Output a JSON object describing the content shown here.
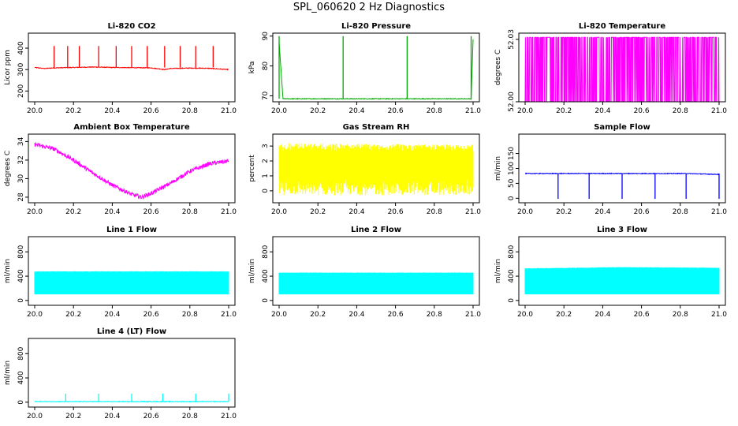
{
  "figure_title": "SPL_060620  2 Hz Diagnostics",
  "chart_data": [
    {
      "type": "line",
      "title": "Li-820 CO2",
      "ylabel": "Licor ppm",
      "color": "#ff0000",
      "xlim": [
        20.0,
        21.0
      ],
      "ylim": [
        150,
        470
      ],
      "xticks": [
        "20.0",
        "20.2",
        "20.4",
        "20.6",
        "20.8",
        "21.0"
      ],
      "yticks": [
        200,
        300,
        400
      ],
      "ytick_labels": [
        "200",
        "300",
        "400"
      ],
      "series": [
        {
          "x": [
            20.0,
            20.05,
            20.1,
            20.2,
            20.3,
            20.4,
            20.5,
            20.6,
            20.67,
            20.7,
            20.8,
            20.9,
            21.0
          ],
          "y": [
            310,
            305,
            308,
            310,
            312,
            310,
            309,
            308,
            300,
            305,
            307,
            306,
            300
          ]
        }
      ]
    },
    {
      "type": "line",
      "title": "Li-820 Pressure",
      "ylabel": "kPa",
      "color": "#00aa00",
      "xlim": [
        20.0,
        21.0
      ],
      "ylim": [
        68,
        91
      ],
      "xticks": [
        "20.0",
        "20.2",
        "20.4",
        "20.6",
        "20.8",
        "21.0"
      ],
      "yticks": [
        70,
        80,
        90
      ],
      "ytick_labels": [
        "70",
        "80",
        "90"
      ],
      "series": [
        {
          "x": [
            20.0,
            20.02,
            20.33,
            20.34,
            20.66,
            20.67,
            20.99,
            21.0
          ],
          "y": [
            88,
            69,
            69,
            69,
            69,
            69,
            69,
            89
          ]
        }
      ]
    },
    {
      "type": "line",
      "title": "Li-820 Temperature",
      "ylabel": "degrees C",
      "color": "#ff00ff",
      "xlim": [
        20.0,
        21.0
      ],
      "ylim": [
        52.0,
        52.033
      ],
      "xticks": [
        "20.0",
        "20.2",
        "20.4",
        "20.6",
        "20.8",
        "21.0"
      ],
      "yticks": [
        52.0,
        52.03
      ],
      "ytick_labels": [
        "52.00",
        "52.03"
      ],
      "series": [
        {
          "x": [
            20.0,
            20.1,
            20.2,
            20.3,
            20.4,
            20.5,
            20.6,
            20.7,
            20.8,
            20.9,
            21.0
          ],
          "y": [
            52.031,
            52.031,
            52.016,
            52.016,
            52.016,
            52.0,
            52.0,
            52.016,
            52.031,
            52.031,
            52.031
          ]
        }
      ]
    },
    {
      "type": "line",
      "title": "Ambient Box Temperature",
      "ylabel": "degrees C",
      "color": "#ff00ff",
      "xlim": [
        20.0,
        21.0
      ],
      "ylim": [
        27.4,
        34.8
      ],
      "xticks": [
        "20.0",
        "20.2",
        "20.4",
        "20.6",
        "20.8",
        "21.0"
      ],
      "yticks": [
        28,
        30,
        32,
        34
      ],
      "ytick_labels": [
        "28",
        "30",
        "32",
        "34"
      ],
      "series": [
        {
          "x": [
            20.0,
            20.1,
            20.2,
            20.3,
            20.4,
            20.5,
            20.55,
            20.6,
            20.7,
            20.8,
            20.9,
            21.0
          ],
          "y": [
            33.7,
            33.2,
            32.0,
            30.6,
            29.3,
            28.3,
            28.0,
            28.4,
            29.5,
            30.8,
            31.6,
            31.9
          ]
        }
      ]
    },
    {
      "type": "area",
      "title": "Gas Stream RH",
      "ylabel": "percent",
      "color": "#ffff00",
      "xlim": [
        20.0,
        21.0
      ],
      "ylim": [
        -0.8,
        3.8
      ],
      "xticks": [
        "20.0",
        "20.2",
        "20.4",
        "20.6",
        "20.8",
        "21.0"
      ],
      "yticks": [
        0,
        1,
        2,
        3
      ],
      "ytick_labels": [
        "0",
        "1",
        "2",
        "3"
      ],
      "series": [
        {
          "x": [
            20.0,
            21.0
          ],
          "y_min": [
            -0.3,
            -0.3
          ],
          "y_max": [
            3.2,
            3.1
          ]
        }
      ]
    },
    {
      "type": "line",
      "title": "Sample Flow",
      "ylabel": "ml/min",
      "color": "#0000ff",
      "xlim": [
        20.0,
        21.0
      ],
      "ylim": [
        -15,
        215
      ],
      "xticks": [
        "20.0",
        "20.2",
        "20.4",
        "20.6",
        "20.8",
        "21.0"
      ],
      "yticks": [
        0,
        50,
        100,
        150
      ],
      "ytick_labels": [
        "0",
        "50",
        "100",
        "150"
      ],
      "series": [
        {
          "x": [
            20.0,
            20.17,
            20.33,
            20.5,
            20.67,
            20.83,
            21.0
          ],
          "y": [
            83,
            83,
            83,
            83,
            83,
            83,
            80
          ]
        }
      ]
    },
    {
      "type": "area",
      "title": "Line 1 Flow",
      "ylabel": "ml/min",
      "color": "#00ffff",
      "xlim": [
        20.0,
        21.0
      ],
      "ylim": [
        -80,
        1050
      ],
      "xticks": [
        "20.0",
        "20.2",
        "20.4",
        "20.6",
        "20.8",
        "21.0"
      ],
      "yticks": [
        0,
        400,
        800
      ],
      "ytick_labels": [
        "0",
        "400",
        "800"
      ],
      "series": [
        {
          "x": [
            20.0,
            21.0
          ],
          "y_min": [
            100,
            100
          ],
          "y_max": [
            480,
            480
          ]
        }
      ]
    },
    {
      "type": "area",
      "title": "Line 2 Flow",
      "ylabel": "ml/min",
      "color": "#00ffff",
      "xlim": [
        20.0,
        21.0
      ],
      "ylim": [
        -80,
        1050
      ],
      "xticks": [
        "20.0",
        "20.2",
        "20.4",
        "20.6",
        "20.8",
        "21.0"
      ],
      "yticks": [
        0,
        400,
        800
      ],
      "ytick_labels": [
        "0",
        "400",
        "800"
      ],
      "series": [
        {
          "x": [
            20.0,
            21.0
          ],
          "y_min": [
            100,
            100
          ],
          "y_max": [
            460,
            460
          ]
        }
      ]
    },
    {
      "type": "area",
      "title": "Line 3 Flow",
      "ylabel": "ml/min",
      "color": "#00ffff",
      "xlim": [
        20.0,
        21.0
      ],
      "ylim": [
        -80,
        1050
      ],
      "xticks": [
        "20.0",
        "20.2",
        "20.4",
        "20.6",
        "20.8",
        "21.0"
      ],
      "yticks": [
        0,
        400,
        800
      ],
      "ytick_labels": [
        "0",
        "400",
        "800"
      ],
      "series": [
        {
          "x": [
            20.0,
            20.5,
            21.0
          ],
          "y_min": [
            100,
            100,
            100
          ],
          "y_max": [
            530,
            550,
            540
          ]
        }
      ]
    },
    {
      "type": "line",
      "title": "Line 4 (LT) Flow",
      "ylabel": "ml/min",
      "color": "#00ffff",
      "xlim": [
        20.0,
        21.0
      ],
      "ylim": [
        -80,
        1050
      ],
      "xticks": [
        "20.0",
        "20.2",
        "20.4",
        "20.6",
        "20.8",
        "21.0"
      ],
      "yticks": [
        0,
        400,
        800
      ],
      "ytick_labels": [
        "0",
        "400",
        "800"
      ],
      "series": [
        {
          "x": [
            20.0,
            20.16,
            20.33,
            20.5,
            20.66,
            20.83,
            21.0
          ],
          "y": [
            10,
            10,
            10,
            10,
            10,
            10,
            10
          ]
        }
      ]
    }
  ]
}
